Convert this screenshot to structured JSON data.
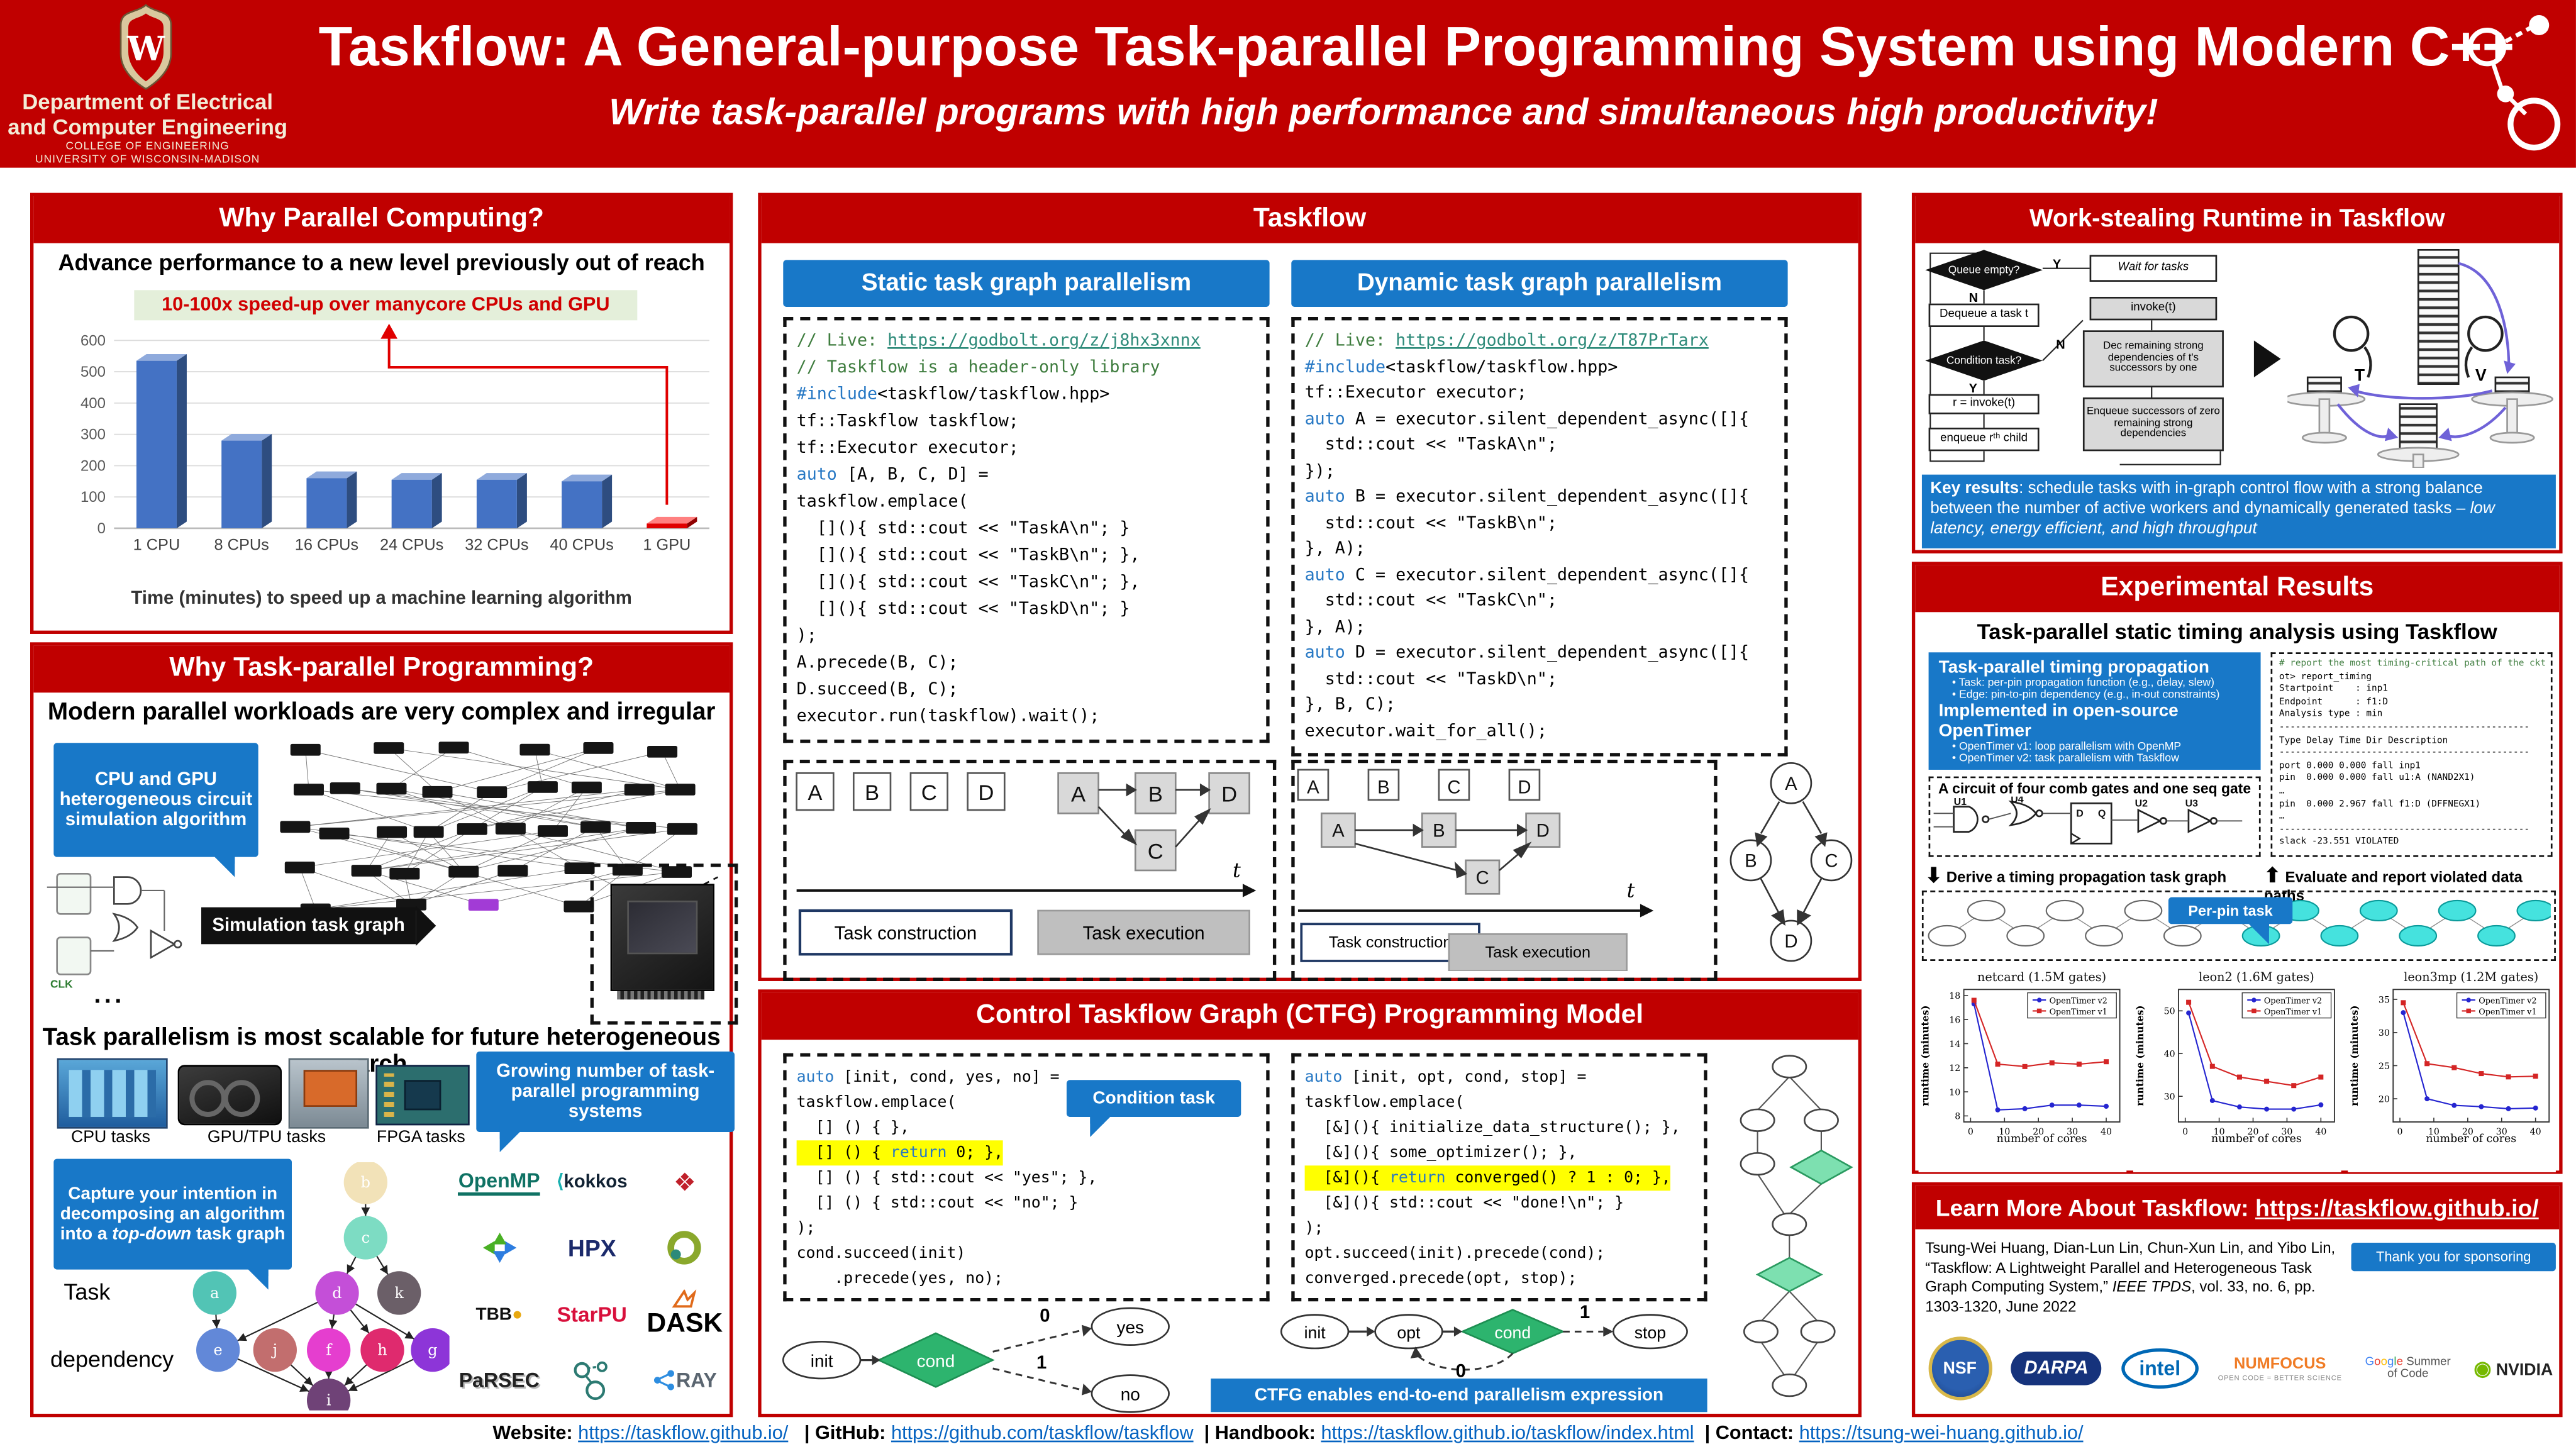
{
  "header": {
    "crest_letter": "W",
    "dept_line1": "Department of Electrical",
    "dept_line2": "and Computer Engineering",
    "dept_line3": "COLLEGE OF ENGINEERING",
    "dept_line4": "UNIVERSITY OF WISCONSIN-MADISON",
    "title": "Taskflow: A General-purpose Task-parallel Programming System using Modern C++",
    "subtitle": "Write task-parallel programs with high performance and simultaneous high productivity!"
  },
  "left": {
    "parallel": {
      "header": "Why Parallel Computing?"
    },
    "tp": {
      "header": "Why Task-parallel Programming?",
      "workloads": "Modern parallel workloads are very complex and irregular",
      "callout_sim": "CPU and GPU heterogeneous circuit simulation algorithm",
      "sim_arrow": "Simulation task graph",
      "clk": "CLK",
      "dots": "...",
      "scalable": "Task parallelism is most scalable for future heterogeneous arch",
      "hw": [
        "CPU tasks",
        "GPU/TPU tasks",
        "FPGA tasks"
      ],
      "growing": "Growing number of task-parallel programming systems",
      "cap_pre": "Capture your intention in decomposing an algorithm into a ",
      "cap_em": "top-down",
      "cap_post": " task graph",
      "task": "Task",
      "dep": "dependency",
      "dag": [
        [
          "b",
          "#f2e2b8"
        ],
        [
          "c",
          "#7ddcc3"
        ],
        [
          "a",
          "#52c4b5"
        ],
        [
          "d",
          "#c44fd8"
        ],
        [
          "k",
          "#6b5f68"
        ],
        [
          "e",
          "#6288d8"
        ],
        [
          "j",
          "#c26e6e"
        ],
        [
          "f",
          "#e53ecf"
        ],
        [
          "h",
          "#df2a6e"
        ],
        [
          "g",
          "#8d35d8"
        ],
        [
          "i",
          "#6f4277"
        ]
      ],
      "logos": {
        "openmp": "OpenMP",
        "kokkos": "kokkos",
        "hpx": "HPX",
        "tbb": "TBB",
        "starpu": "StarPU",
        "dask": "DASK",
        "parsec": "PaRSEC",
        "ray": "RAY"
      }
    }
  },
  "middle": {
    "header": "Taskflow",
    "static_title": "Static task graph parallelism",
    "dynamic_title": "Dynamic task graph parallelism",
    "static_code": [
      {
        "s": [
          [
            "// Live: ",
            "cm"
          ],
          [
            "https://godbolt.org/z/j8hx3xnnx",
            "cm lk"
          ]
        ]
      },
      {
        "s": [
          [
            "// Taskflow is a header-only library",
            "cm"
          ]
        ]
      },
      {
        "s": [
          [
            "#include",
            "kw"
          ],
          [
            "<taskflow/taskflow.hpp>",
            ""
          ]
        ]
      },
      {
        "s": [
          [
            "tf::Taskflow taskflow;",
            ""
          ]
        ]
      },
      {
        "s": [
          [
            "tf::Executor executor;",
            ""
          ]
        ]
      },
      {
        "s": [
          [
            "auto",
            "kw"
          ],
          [
            " [A, B, C, D] =",
            ""
          ]
        ]
      },
      {
        "s": [
          [
            "taskflow.emplace(",
            ""
          ]
        ]
      },
      {
        "s": [
          [
            "  [](){ std::cout << \"TaskA\\n\"; }",
            ""
          ]
        ]
      },
      {
        "s": [
          [
            "  [](){ std::cout << \"TaskB\\n\"; },",
            ""
          ]
        ]
      },
      {
        "s": [
          [
            "  [](){ std::cout << \"TaskC\\n\"; },",
            ""
          ]
        ]
      },
      {
        "s": [
          [
            "  [](){ std::cout << \"TaskD\\n\"; }",
            ""
          ]
        ]
      },
      {
        "s": [
          [
            ");",
            ""
          ]
        ]
      },
      {
        "s": [
          [
            "A.precede(B, C);",
            ""
          ]
        ]
      },
      {
        "s": [
          [
            "D.succeed(B, C);",
            ""
          ]
        ]
      },
      {
        "s": [
          [
            "executor.run(taskflow).wait();",
            ""
          ]
        ]
      }
    ],
    "dynamic_code": [
      {
        "s": [
          [
            "// Live: ",
            "cm"
          ],
          [
            "https://godbolt.org/z/T87PrTarx",
            "cm lk"
          ]
        ]
      },
      {
        "s": [
          [
            "#include",
            "kw"
          ],
          [
            "<taskflow/taskflow.hpp>",
            ""
          ]
        ]
      },
      {
        "s": [
          [
            "tf::Executor executor;",
            ""
          ]
        ]
      },
      {
        "s": [
          [
            "auto",
            "kw"
          ],
          [
            " A = executor.silent_dependent_async([]{",
            ""
          ]
        ]
      },
      {
        "s": [
          [
            "  std::cout << \"TaskA\\n\";",
            ""
          ]
        ]
      },
      {
        "s": [
          [
            "});",
            ""
          ]
        ]
      },
      {
        "s": [
          [
            "auto",
            "kw"
          ],
          [
            " B = executor.silent_dependent_async([]{",
            ""
          ]
        ]
      },
      {
        "s": [
          [
            "  std::cout << \"TaskB\\n\";",
            ""
          ]
        ]
      },
      {
        "s": [
          [
            "}, A);",
            ""
          ]
        ]
      },
      {
        "s": [
          [
            "auto",
            "kw"
          ],
          [
            " C = executor.silent_dependent_async([]{",
            ""
          ]
        ]
      },
      {
        "s": [
          [
            "  std::cout << \"TaskC\\n\";",
            ""
          ]
        ]
      },
      {
        "s": [
          [
            "}, A);",
            ""
          ]
        ]
      },
      {
        "s": [
          [
            "auto",
            "kw"
          ],
          [
            " D = executor.silent_dependent_async([]{",
            ""
          ]
        ]
      },
      {
        "s": [
          [
            "  std::cout << \"TaskD\\n\";",
            ""
          ]
        ]
      },
      {
        "s": [
          [
            "}, B, C);",
            ""
          ]
        ]
      },
      {
        "s": [
          [
            "executor.wait_for_all();",
            ""
          ]
        ]
      }
    ],
    "diag": {
      "letters": [
        "A",
        "B",
        "C",
        "D"
      ],
      "t": "t",
      "construction": "Task construction",
      "execution": "Task execution"
    },
    "ctfg": {
      "header": "Control Taskflow Graph (CTFG) Programming Model",
      "condition": "Condition task",
      "left_code": [
        {
          "s": [
            [
              "auto",
              "kw"
            ],
            [
              " [init, cond, yes, no] =",
              ""
            ]
          ]
        },
        {
          "s": [
            [
              "taskflow.emplace(",
              ""
            ]
          ]
        },
        {
          "s": [
            [
              "  [] () { },",
              ""
            ]
          ]
        },
        {
          "h": 1,
          "s": [
            [
              "  [] () { ",
              ""
            ],
            [
              "return",
              "kw"
            ],
            [
              " 0; },",
              ""
            ]
          ]
        },
        {
          "s": [
            [
              "  [] () { std::cout << \"yes\"; },",
              ""
            ]
          ]
        },
        {
          "s": [
            [
              "  [] () { std::cout << \"no\"; }",
              ""
            ]
          ]
        },
        {
          "s": [
            [
              ");",
              ""
            ]
          ]
        },
        {
          "s": [
            [
              "cond.succeed(init)",
              ""
            ]
          ]
        },
        {
          "s": [
            [
              "    .precede(yes, no);",
              ""
            ]
          ]
        }
      ],
      "right_code": [
        {
          "s": [
            [
              "auto",
              "kw"
            ],
            [
              " [init, opt, cond, stop] =",
              ""
            ]
          ]
        },
        {
          "s": [
            [
              "taskflow.emplace(",
              ""
            ]
          ]
        },
        {
          "s": [
            [
              "  [&](){ initialize_data_structure(); },",
              ""
            ]
          ]
        },
        {
          "s": [
            [
              "  [&](){ some_optimizer(); },",
              ""
            ]
          ]
        },
        {
          "h": 1,
          "s": [
            [
              "  [&](){ ",
              ""
            ],
            [
              "return",
              "kw"
            ],
            [
              " converged() ? 1 : 0; },",
              ""
            ]
          ]
        },
        {
          "s": [
            [
              "  [&](){ std::cout << \"done!\\n\"; }",
              ""
            ]
          ]
        },
        {
          "s": [
            [
              ");",
              ""
            ]
          ]
        },
        {
          "s": [
            [
              "opt.succeed(init).precede(cond);",
              ""
            ]
          ]
        },
        {
          "s": [
            [
              "converged.precede(opt, stop);",
              ""
            ]
          ]
        }
      ],
      "flow1": {
        "init": "init",
        "cond": "cond",
        "yes": "yes",
        "no": "no",
        "zero": "0",
        "one": "1"
      },
      "flow2": {
        "init": "init",
        "opt": "opt",
        "cond": "cond",
        "stop": "stop",
        "zero": "0",
        "one": "1"
      },
      "banner": "CTFG enables end-to-end parallelism expression"
    }
  },
  "right": {
    "ws": {
      "header": "Work-stealing Runtime in Taskflow",
      "flow": {
        "qe": "Queue empty?",
        "wait": "Wait for tasks",
        "deq": "Dequeue a task t",
        "inv": "invoke(t)",
        "ct": "Condition task?",
        "dec": "Dec remaining strong dependencies of t's successors by one",
        "rinv": "r = invoke(t)",
        "enq": "enqueue rᵗʰ child",
        "enqs": "Enqueue successors of zero remaining strong dependencies",
        "y": "Y",
        "n": "N"
      },
      "cartoon": {
        "t": "T",
        "v": "V"
      },
      "key_pre": "Key results",
      "key_mid": ": schedule tasks with in-graph control flow with a strong balance between the number of active workers and dynamically generated tasks – ",
      "key_em": "low latency, energy efficient, and high throughput"
    },
    "exp": {
      "header": "Experimental Results",
      "title": "Task-parallel static timing analysis using Taskflow",
      "box": {
        "h1": "Task-parallel timing propagation",
        "b1": "Task: per-pin propagation function (e.g., delay, slew)",
        "b2": "Edge: pin-to-pin dependency (e.g., in-out constraints)",
        "h2": "Implemented in open-source OpenTimer",
        "b3": "OpenTimer v1: loop parallelism with OpenMP",
        "b4": "OpenTimer v2: task parallelism with Taskflow"
      },
      "circuit": {
        "label": "A circuit of four comb gates and one seq gate",
        "gates": [
          "U1",
          "U4",
          "U2",
          "U3"
        ],
        "d": "D",
        "q": "Q"
      },
      "terminal": [
        {
          "s": [
            [
              "# report the most timing-critical path of the ckt",
              "g"
            ]
          ]
        },
        {
          "s": [
            [
              "ot> report_timing",
              ""
            ]
          ]
        },
        {
          "s": [
            [
              "Startpoint    : inp1",
              ""
            ]
          ]
        },
        {
          "s": [
            [
              "Endpoint      : f1:D",
              ""
            ]
          ]
        },
        {
          "s": [
            [
              "Analysis type : min",
              ""
            ]
          ]
        },
        {
          "s": [
            [
              "----------------------------------------------",
              ""
            ]
          ]
        },
        {
          "s": [
            [
              "Type Delay Time Dir Description",
              ""
            ]
          ]
        },
        {
          "s": [
            [
              "----------------------------------------------",
              ""
            ]
          ]
        },
        {
          "s": [
            [
              "port 0.000 0.000 fall inp1",
              ""
            ]
          ]
        },
        {
          "s": [
            [
              "pin  0.000 0.000 fall u1:A (NAND2X1)",
              ""
            ]
          ]
        },
        {
          "s": [
            [
              "…",
              ""
            ]
          ]
        },
        {
          "s": [
            [
              "pin  0.000 2.967 fall f1:D (DFFNEGX1)",
              ""
            ]
          ]
        },
        {
          "s": [
            [
              "…",
              ""
            ]
          ]
        },
        {
          "s": [
            [
              "----------------------------------------------",
              ""
            ]
          ]
        },
        {
          "s": [
            [
              "slack -23.551 VIOLATED",
              ""
            ]
          ]
        }
      ],
      "derive": "Derive a timing propagation task graph",
      "evaluate": "Evaluate and report violated data paths",
      "perpin": "Per-pin task"
    },
    "learn": {
      "pre": "Learn More About Taskflow: ",
      "url": "https://taskflow.github.io/"
    },
    "citation": {
      "pre": "Tsung-Wei Huang, Dian-Lun Lin, Chun-Xun Lin, and Yibo Lin, “Taskflow: A Lightweight Parallel and Heterogeneous Task Graph Computing System,” ",
      "em": "IEEE TPDS",
      "post": ", vol. 33, no. 6, pp. 1303-1320, June 2022"
    },
    "sponsor": {
      "banner": "Thank you for sponsoring Taskflow!",
      "nsf": "NSF",
      "darpa": "DARPA",
      "intel": "intel",
      "numfocus": "NUMFOCUS",
      "numfocus_tag": "OPEN CODE = BETTER SCIENCE",
      "gsoc": "Google Summer of Code",
      "nvidia": "NVIDIA"
    }
  },
  "footer": {
    "website_label": "Website:",
    "website_url": "https://taskflow.github.io/",
    "github_label": "| GitHub:",
    "github_url": "https://github.com/taskflow/taskflow",
    "handbook_label": "| Handbook:",
    "handbook_url": "https://taskflow.github.io/taskflow/index.html",
    "contact_label": "| Contact:",
    "contact_url": "https://tsung-wei-huang.github.io/"
  },
  "chart_data": [
    {
      "id": "speedup",
      "type": "bar",
      "title": "Advance performance to a new level previously out of reach",
      "annotation": "10-100x speed-up over manycore CPUs and GPU",
      "categories": [
        "1 CPU",
        "8 CPUs",
        "16 CPUs",
        "24 CPUs",
        "32 CPUs",
        "40 CPUs",
        "1 GPU"
      ],
      "values": [
        535,
        280,
        160,
        155,
        155,
        150,
        15
      ],
      "highlight_index": 6,
      "bar_color": "#4472c4",
      "highlight_color": "#e00000",
      "ylim": [
        0,
        600
      ],
      "yticks": [
        0,
        100,
        200,
        300,
        400,
        500,
        600
      ],
      "grid": true,
      "xlabel": "Time (minutes) to speed up a machine learning algorithm",
      "ylabel": ""
    },
    {
      "id": "netcard",
      "type": "line",
      "title": "netcard (1.5M gates)",
      "x": [
        1,
        8,
        16,
        24,
        32,
        40
      ],
      "series": [
        {
          "name": "OpenTimer v2",
          "color": "#2525d0",
          "marker": "circle",
          "values": [
            17.3,
            8.5,
            8.6,
            8.9,
            8.9,
            8.8
          ]
        },
        {
          "name": "OpenTimer v1",
          "color": "#d42525",
          "marker": "square",
          "values": [
            17.6,
            12.3,
            12.1,
            12.4,
            12.3,
            12.5
          ]
        }
      ],
      "ylim": [
        7.5,
        18.5
      ],
      "yticks": [
        8,
        10,
        12,
        14,
        16,
        18
      ],
      "xticks": [
        0,
        10,
        20,
        30,
        40
      ],
      "xlim": [
        -2,
        44
      ],
      "xlabel": "number of cores",
      "ylabel": "runtime (minutes)",
      "legend": "top-right"
    },
    {
      "id": "leon2",
      "type": "line",
      "title": "leon2 (1.6M gates)",
      "x": [
        1,
        8,
        16,
        24,
        32,
        40
      ],
      "series": [
        {
          "name": "OpenTimer v2",
          "color": "#2525d0",
          "marker": "circle",
          "values": [
            49.5,
            29,
            27.5,
            27,
            27,
            28
          ]
        },
        {
          "name": "OpenTimer v1",
          "color": "#d42525",
          "marker": "square",
          "values": [
            52,
            37,
            34.5,
            33.5,
            32.5,
            34.5
          ]
        }
      ],
      "ylim": [
        24,
        55
      ],
      "yticks": [
        30,
        40,
        50
      ],
      "xticks": [
        0,
        10,
        20,
        30,
        40
      ],
      "xlim": [
        -2,
        44
      ],
      "xlabel": "number of cores",
      "ylabel": "runtime (minutes)",
      "legend": "top-right"
    },
    {
      "id": "leon3mp",
      "type": "line",
      "title": "leon3mp (1.2M gates)",
      "x": [
        1,
        8,
        16,
        24,
        32,
        40
      ],
      "series": [
        {
          "name": "OpenTimer v2",
          "color": "#2525d0",
          "marker": "circle",
          "values": [
            33,
            20,
            19,
            18.8,
            18.5,
            18.6
          ]
        },
        {
          "name": "OpenTimer v1",
          "color": "#d42525",
          "marker": "square",
          "values": [
            34.5,
            25.3,
            24.7,
            23.8,
            23.3,
            23.4
          ]
        }
      ],
      "ylim": [
        16.5,
        36.5
      ],
      "yticks": [
        20,
        25,
        30,
        35
      ],
      "xticks": [
        0,
        10,
        20,
        30,
        40
      ],
      "xlim": [
        -2,
        44
      ],
      "xlabel": "number of cores",
      "ylabel": "runtime (minutes)",
      "legend": "top-right"
    }
  ]
}
